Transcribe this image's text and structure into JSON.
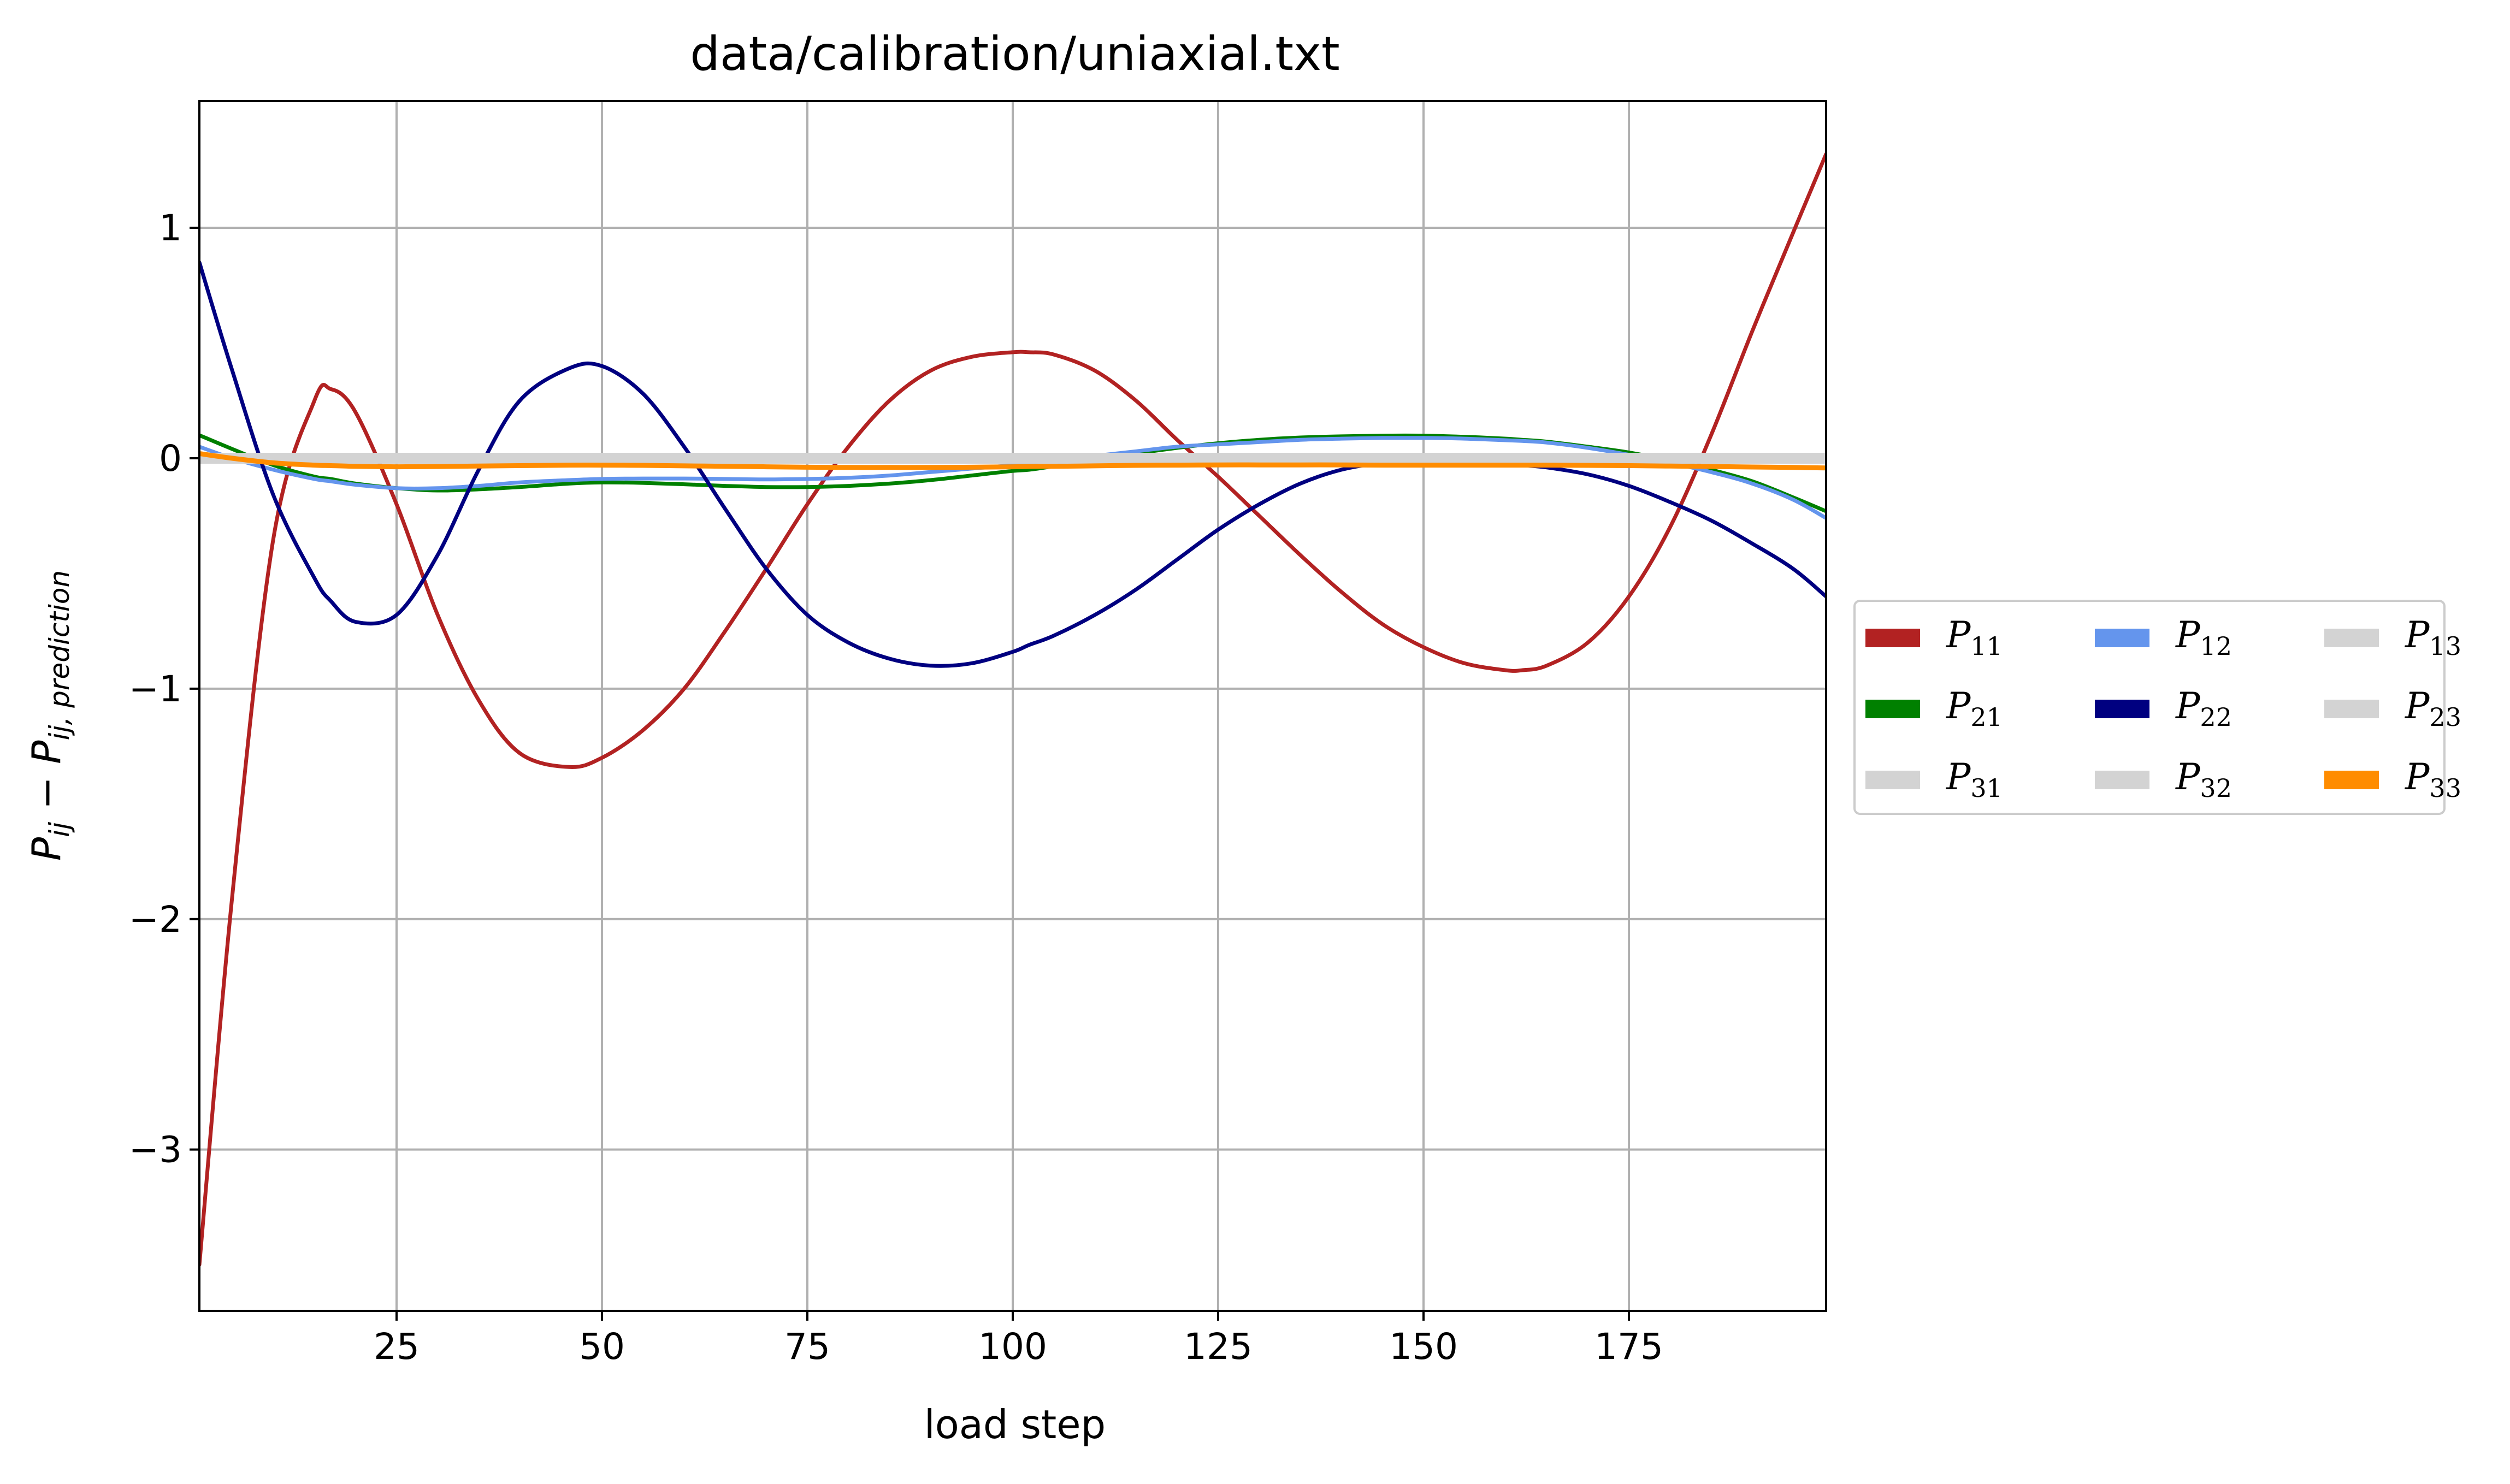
{
  "chart_data": {
    "type": "line",
    "title": "data/calibration/uniaxial.txt",
    "xlabel": "load step",
    "ylabel": {
      "base": "P",
      "sub1": "ij",
      "minus": " − ",
      "base2": "P",
      "sub2": "ij, prediction"
    },
    "xlim": [
      1,
      199
    ],
    "ylim": [
      -3.7,
      1.55
    ],
    "xticks": [
      25,
      50,
      75,
      100,
      125,
      150,
      175
    ],
    "yticks": [
      1,
      0,
      -1,
      -2,
      -3
    ],
    "xtick_labels": [
      "25",
      "50",
      "75",
      "100",
      "125",
      "150",
      "175"
    ],
    "ytick_labels": [
      "1",
      "0",
      "−1",
      "−2",
      "−3"
    ],
    "grid": true,
    "legend_position": "center-right outside",
    "x": [
      1,
      5,
      10,
      15,
      17,
      20,
      25,
      30,
      35,
      40,
      46,
      50,
      55,
      60,
      65,
      70,
      75,
      80,
      85,
      90,
      95,
      100,
      102,
      105,
      110,
      115,
      120,
      125,
      130,
      135,
      140,
      145,
      150,
      155,
      160,
      162,
      165,
      170,
      175,
      180,
      185,
      190,
      195,
      199
    ],
    "series": [
      {
        "name": "P11",
        "sub": "11",
        "color": "#b22222",
        "values": [
          -3.5,
          -1.9,
          -0.35,
          0.25,
          0.3,
          0.2,
          -0.2,
          -0.68,
          -1.05,
          -1.28,
          -1.34,
          -1.3,
          -1.18,
          -1.0,
          -0.75,
          -0.48,
          -0.2,
          0.05,
          0.25,
          0.38,
          0.44,
          0.46,
          0.46,
          0.45,
          0.38,
          0.25,
          0.08,
          -0.08,
          -0.25,
          -0.42,
          -0.58,
          -0.72,
          -0.82,
          -0.89,
          -0.92,
          -0.92,
          -0.9,
          -0.8,
          -0.6,
          -0.3,
          0.1,
          0.55,
          0.98,
          1.32
        ]
      },
      {
        "name": "P21",
        "sub": "21",
        "color": "#008000",
        "values": [
          0.1,
          0.04,
          -0.03,
          -0.08,
          -0.09,
          -0.11,
          -0.13,
          -0.14,
          -0.135,
          -0.125,
          -0.11,
          -0.105,
          -0.107,
          -0.113,
          -0.12,
          -0.125,
          -0.125,
          -0.12,
          -0.11,
          -0.095,
          -0.075,
          -0.055,
          -0.05,
          -0.035,
          -0.01,
          0.02,
          0.045,
          0.065,
          0.08,
          0.09,
          0.095,
          0.098,
          0.098,
          0.093,
          0.085,
          0.08,
          0.072,
          0.05,
          0.025,
          -0.01,
          -0.05,
          -0.1,
          -0.17,
          -0.23
        ]
      },
      {
        "name": "P31",
        "sub": "31",
        "color": "#d3d3d3",
        "values": [
          0.0,
          0.0,
          0.0,
          0.0,
          0.0,
          0.0,
          0.0,
          0.0,
          0.0,
          0.0,
          0.0,
          0.0,
          0.0,
          0.0,
          0.0,
          0.0,
          0.0,
          0.0,
          0.0,
          0.0,
          0.0,
          0.0,
          0.0,
          0.0,
          0.0,
          0.0,
          0.0,
          0.0,
          0.0,
          0.0,
          0.0,
          0.0,
          0.0,
          0.0,
          0.0,
          0.0,
          0.0,
          0.0,
          0.0,
          0.0,
          0.0,
          0.0,
          0.0,
          0.0
        ]
      },
      {
        "name": "P12",
        "sub": "12",
        "color": "#6495ed",
        "values": [
          0.05,
          0.0,
          -0.05,
          -0.09,
          -0.1,
          -0.115,
          -0.13,
          -0.13,
          -0.12,
          -0.105,
          -0.095,
          -0.09,
          -0.088,
          -0.088,
          -0.09,
          -0.092,
          -0.09,
          -0.085,
          -0.075,
          -0.06,
          -0.045,
          -0.03,
          -0.02,
          -0.01,
          0.01,
          0.03,
          0.05,
          0.06,
          0.07,
          0.08,
          0.085,
          0.088,
          0.088,
          0.085,
          0.078,
          0.075,
          0.068,
          0.045,
          0.015,
          -0.02,
          -0.06,
          -0.11,
          -0.18,
          -0.26
        ]
      },
      {
        "name": "P22",
        "sub": "22",
        "color": "#000080",
        "values": [
          0.85,
          0.38,
          -0.16,
          -0.52,
          -0.62,
          -0.71,
          -0.68,
          -0.42,
          -0.05,
          0.25,
          0.39,
          0.4,
          0.28,
          0.05,
          -0.22,
          -0.48,
          -0.68,
          -0.8,
          -0.87,
          -0.9,
          -0.89,
          -0.84,
          -0.81,
          -0.77,
          -0.68,
          -0.57,
          -0.44,
          -0.31,
          -0.2,
          -0.11,
          -0.05,
          -0.02,
          -0.01,
          -0.01,
          -0.02,
          -0.03,
          -0.04,
          -0.07,
          -0.12,
          -0.19,
          -0.27,
          -0.37,
          -0.48,
          -0.6
        ]
      },
      {
        "name": "P32",
        "sub": "32",
        "color": "#d3d3d3",
        "values": [
          0.0,
          0.0,
          0.0,
          0.0,
          0.0,
          0.0,
          0.0,
          0.0,
          0.0,
          0.0,
          0.0,
          0.0,
          0.0,
          0.0,
          0.0,
          0.0,
          0.0,
          0.0,
          0.0,
          0.0,
          0.0,
          0.0,
          0.0,
          0.0,
          0.0,
          0.0,
          0.0,
          0.0,
          0.0,
          0.0,
          0.0,
          0.0,
          0.0,
          0.0,
          0.0,
          0.0,
          0.0,
          0.0,
          0.0,
          0.0,
          0.0,
          0.0,
          0.0,
          0.0
        ]
      },
      {
        "name": "P13",
        "sub": "13",
        "color": "#d3d3d3",
        "values": [
          0.0,
          0.0,
          0.0,
          0.0,
          0.0,
          0.0,
          0.0,
          0.0,
          0.0,
          0.0,
          0.0,
          0.0,
          0.0,
          0.0,
          0.0,
          0.0,
          0.0,
          0.0,
          0.0,
          0.0,
          0.0,
          0.0,
          0.0,
          0.0,
          0.0,
          0.0,
          0.0,
          0.0,
          0.0,
          0.0,
          0.0,
          0.0,
          0.0,
          0.0,
          0.0,
          0.0,
          0.0,
          0.0,
          0.0,
          0.0,
          0.0,
          0.0,
          0.0,
          0.0
        ]
      },
      {
        "name": "P23",
        "sub": "23",
        "color": "#d3d3d3",
        "values": [
          0.0,
          0.0,
          0.0,
          0.0,
          0.0,
          0.0,
          0.0,
          0.0,
          0.0,
          0.0,
          0.0,
          0.0,
          0.0,
          0.0,
          0.0,
          0.0,
          0.0,
          0.0,
          0.0,
          0.0,
          0.0,
          0.0,
          0.0,
          0.0,
          0.0,
          0.0,
          0.0,
          0.0,
          0.0,
          0.0,
          0.0,
          0.0,
          0.0,
          0.0,
          0.0,
          0.0,
          0.0,
          0.0,
          0.0,
          0.0,
          0.0,
          0.0,
          0.0,
          0.0
        ]
      },
      {
        "name": "P33",
        "sub": "33",
        "color": "#ff8c00",
        "values": [
          0.02,
          0.0,
          -0.02,
          -0.03,
          -0.032,
          -0.035,
          -0.037,
          -0.036,
          -0.034,
          -0.032,
          -0.03,
          -0.03,
          -0.031,
          -0.033,
          -0.035,
          -0.037,
          -0.039,
          -0.04,
          -0.04,
          -0.04,
          -0.039,
          -0.037,
          -0.036,
          -0.035,
          -0.033,
          -0.031,
          -0.03,
          -0.029,
          -0.029,
          -0.029,
          -0.029,
          -0.03,
          -0.03,
          -0.03,
          -0.03,
          -0.03,
          -0.03,
          -0.031,
          -0.032,
          -0.034,
          -0.036,
          -0.038,
          -0.04,
          -0.042
        ]
      }
    ]
  }
}
